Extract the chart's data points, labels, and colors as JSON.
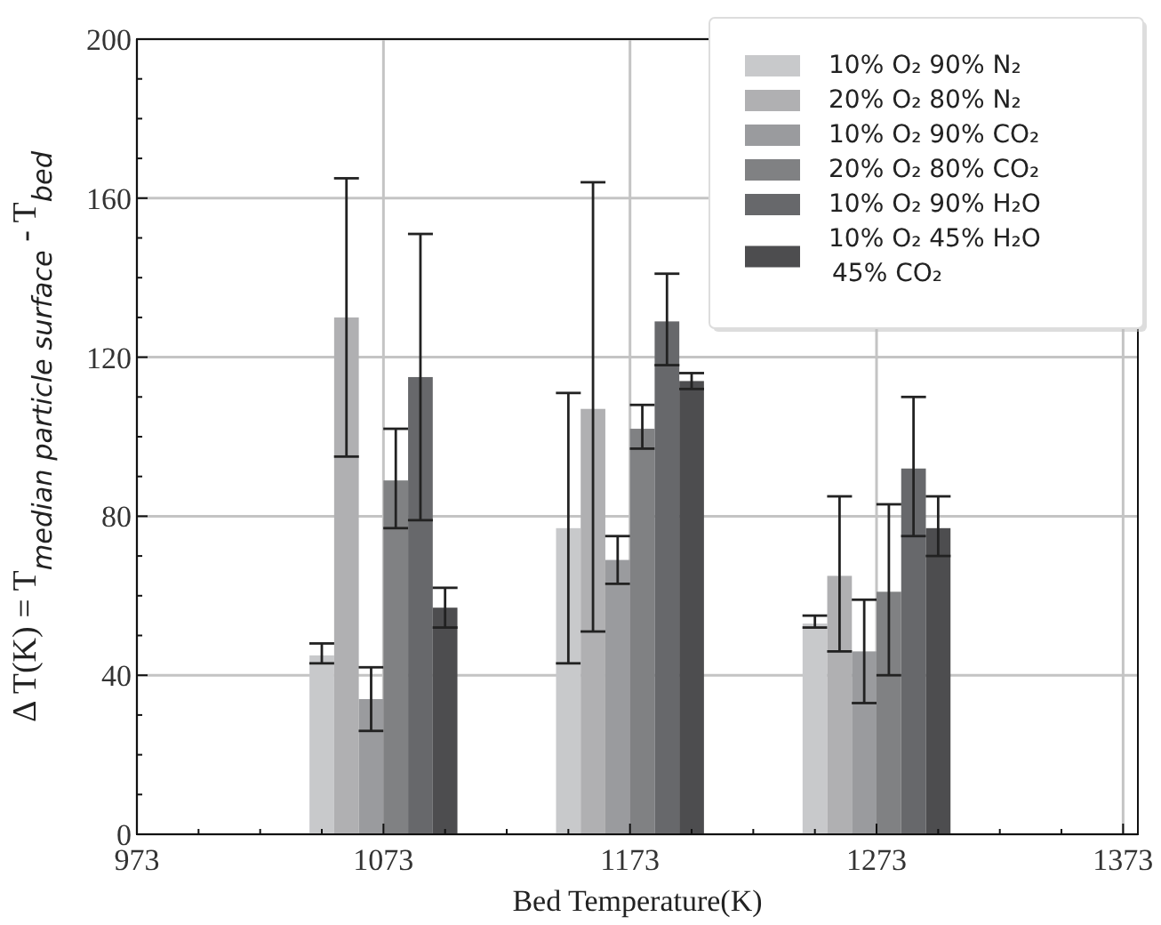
{
  "chart_data": {
    "type": "bar",
    "xlabel": "Bed Temperature(K)",
    "ylabel": "Δ T(K) = T$_{median particle surface}$ - T$_{bed}$",
    "x": [
      1073,
      1173,
      1273
    ],
    "series": [
      {
        "name": "10% O₂ 90% N₂",
        "color": "#c8c9cb",
        "values": [
          45,
          77,
          53
        ],
        "errors": [
          [
            43,
            48
          ],
          [
            43,
            111
          ],
          [
            52,
            55
          ]
        ]
      },
      {
        "name": "20% O₂ 80% N₂",
        "color": "#b0b0b2",
        "values": [
          130,
          107,
          65
        ],
        "errors": [
          [
            95,
            165
          ],
          [
            51,
            164
          ],
          [
            46,
            85
          ]
        ]
      },
      {
        "name": "10% O₂ 90% CO₂",
        "color": "#9a9b9e",
        "values": [
          34,
          69,
          46
        ],
        "errors": [
          [
            26,
            42
          ],
          [
            63,
            75
          ],
          [
            33,
            59
          ]
        ]
      },
      {
        "name": "20% O₂ 80% CO₂",
        "color": "#808183",
        "values": [
          89,
          102,
          61
        ],
        "errors": [
          [
            77,
            102
          ],
          [
            97,
            108
          ],
          [
            40,
            83
          ]
        ]
      },
      {
        "name": "10% O₂ 90% H₂O",
        "color": "#67686b",
        "values": [
          115,
          129,
          92
        ],
        "errors": [
          [
            79,
            151
          ],
          [
            118,
            141
          ],
          [
            75,
            110
          ]
        ]
      },
      {
        "name": "10% O₂ 45% H₂O 45% CO₂",
        "color": "#4d4d4f",
        "values": [
          57,
          114,
          77
        ],
        "errors": [
          [
            52,
            62
          ],
          [
            112,
            116
          ],
          [
            70,
            85
          ]
        ]
      }
    ],
    "xlim": [
      973,
      1379
    ],
    "ylim": [
      0,
      200
    ],
    "xticks": [
      973,
      {
        "value": 998,
        "label": null
      },
      {
        "value": 1023,
        "label": null
      },
      {
        "value": 1048,
        "label": null
      },
      1073,
      {
        "value": 1098,
        "label": null
      },
      {
        "value": 1123,
        "label": null
      },
      {
        "value": 1148,
        "label": null
      },
      1173,
      {
        "value": 1198,
        "label": null
      },
      {
        "value": 1223,
        "label": null
      },
      {
        "value": 1248,
        "label": null
      },
      1273,
      {
        "value": 1298,
        "label": null
      },
      {
        "value": 1323,
        "label": null
      },
      {
        "value": 1348,
        "label": null
      },
      1373
    ],
    "yticks": [
      0,
      {
        "value": 10,
        "label": null
      },
      {
        "value": 20,
        "label": null
      },
      {
        "value": 30,
        "label": null
      },
      40,
      {
        "value": 50,
        "label": null
      },
      {
        "value": 60,
        "label": null
      },
      {
        "value": 70,
        "label": null
      },
      80,
      {
        "value": 90,
        "label": null
      },
      {
        "value": 100,
        "label": null
      },
      {
        "value": 110,
        "label": null
      },
      120,
      {
        "value": 130,
        "label": null
      },
      {
        "value": 140,
        "label": null
      },
      {
        "value": 150,
        "label": null
      },
      160,
      {
        "value": 170,
        "label": null
      },
      {
        "value": 180,
        "label": null
      },
      {
        "value": 190,
        "label": null
      },
      200
    ],
    "grid": true,
    "legend": "top right"
  }
}
